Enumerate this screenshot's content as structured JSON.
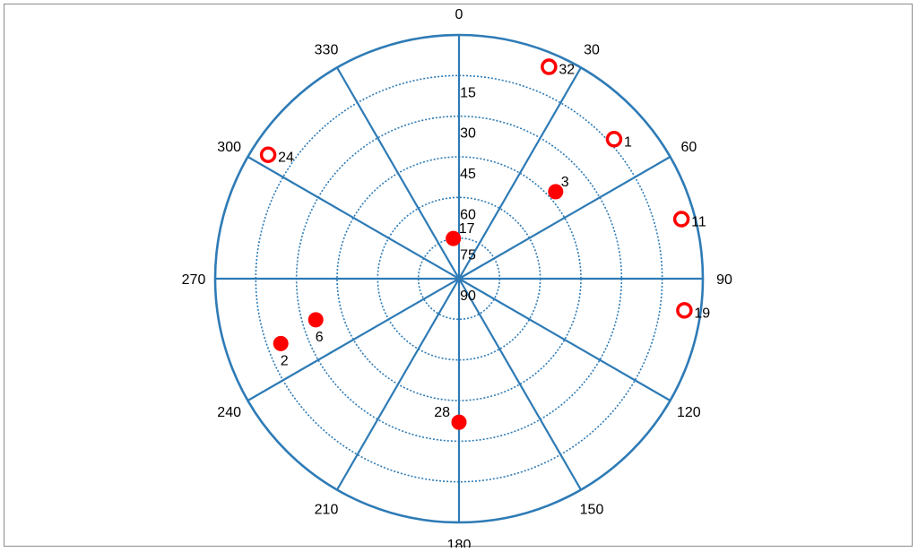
{
  "chart_data": {
    "type": "scatter",
    "projection": "polar",
    "angular_axis": {
      "direction": "clockwise",
      "zero_at": "top",
      "tick_labels": [
        "0",
        "30",
        "60",
        "90",
        "120",
        "150",
        "180",
        "210",
        "240",
        "270",
        "300",
        "330"
      ]
    },
    "radial_axis": {
      "range": [
        90,
        0
      ],
      "reversed": true,
      "tick_labels": [
        "15",
        "30",
        "45",
        "60",
        "75",
        "90"
      ]
    },
    "grid": true,
    "legend": "none",
    "colors": {
      "axis": "#2e7bb6",
      "point": "#ff0000"
    },
    "series": [
      {
        "marker": "filled",
        "points": [
          {
            "label": "17",
            "azimuth": 352,
            "elevation": 75
          },
          {
            "label": "3",
            "azimuth": 48,
            "elevation": 42
          },
          {
            "label": "6",
            "azimuth": 254,
            "elevation": 35
          },
          {
            "label": "2",
            "azimuth": 250,
            "elevation": 20
          },
          {
            "label": "28",
            "azimuth": 180,
            "elevation": 37
          }
        ]
      },
      {
        "marker": "open",
        "points": [
          {
            "label": "32",
            "azimuth": 23,
            "elevation": 5
          },
          {
            "label": "1",
            "azimuth": 48,
            "elevation": 13
          },
          {
            "label": "11",
            "azimuth": 75,
            "elevation": 5
          },
          {
            "label": "19",
            "azimuth": 98,
            "elevation": 6
          },
          {
            "label": "24",
            "azimuth": 303,
            "elevation": 6
          }
        ]
      }
    ]
  }
}
